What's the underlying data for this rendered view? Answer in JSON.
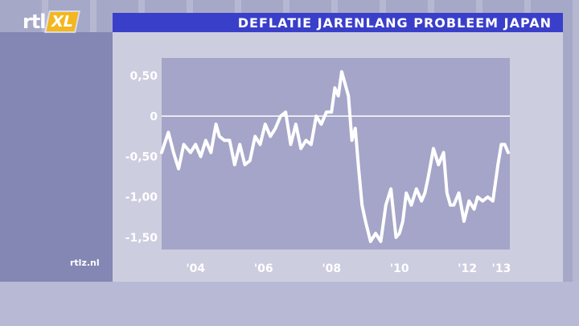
{
  "header": {
    "title": "DEFLATIE JARENLANG PROBLEEM JAPAN",
    "logo_text": "rtl",
    "logo_badge": "XL"
  },
  "footer": {
    "site": "rtlz.nl"
  },
  "colors": {
    "background": "#a6a8c8",
    "left_panel": "#8486b4",
    "chart_panel": "#cdcde0",
    "plot_area": "#a4a5c8",
    "title_bar": "#3a3fc9",
    "line": "#ffffff",
    "logo_badge": "#f3b71f"
  },
  "chart_data": {
    "type": "line",
    "title": "DEFLATIE JARENLANG PROBLEEM JAPAN",
    "xlabel": "",
    "ylabel": "",
    "xlim": [
      2003.0,
      2013.25
    ],
    "ylim": [
      -1.65,
      0.72
    ],
    "grid": "zero-line only",
    "yticks": [
      {
        "value": 0.5,
        "label": "0,50"
      },
      {
        "value": 0,
        "label": "0"
      },
      {
        "value": -0.5,
        "label": "-0,50"
      },
      {
        "value": -1.0,
        "label": "-1,00"
      },
      {
        "value": -1.5,
        "label": "-1,50"
      }
    ],
    "xticks": [
      {
        "value": 2004,
        "label": "'04"
      },
      {
        "value": 2006,
        "label": "'06"
      },
      {
        "value": 2008,
        "label": "'08"
      },
      {
        "value": 2010,
        "label": "'10"
      },
      {
        "value": 2012,
        "label": "'12"
      },
      {
        "value": 2013,
        "label": "'13"
      }
    ],
    "series": [
      {
        "color": "#ffffff",
        "x": [
          2003.0,
          2003.2,
          2003.35,
          2003.5,
          2003.65,
          2003.85,
          2004.0,
          2004.15,
          2004.3,
          2004.45,
          2004.6,
          2004.7,
          2004.85,
          2005.0,
          2005.15,
          2005.3,
          2005.45,
          2005.6,
          2005.75,
          2005.9,
          2006.05,
          2006.2,
          2006.35,
          2006.5,
          2006.65,
          2006.8,
          2006.95,
          2007.1,
          2007.25,
          2007.4,
          2007.55,
          2007.7,
          2007.85,
          2008.0,
          2008.1,
          2008.2,
          2008.3,
          2008.4,
          2008.5,
          2008.6,
          2008.7,
          2008.8,
          2008.9,
          2009.0,
          2009.15,
          2009.3,
          2009.45,
          2009.6,
          2009.75,
          2009.9,
          2010.0,
          2010.1,
          2010.2,
          2010.35,
          2010.5,
          2010.65,
          2010.75,
          2010.85,
          2011.0,
          2011.15,
          2011.3,
          2011.4,
          2011.5,
          2011.6,
          2011.75,
          2011.9,
          2012.05,
          2012.2,
          2012.3,
          2012.45,
          2012.6,
          2012.75,
          2012.9,
          2013.0,
          2013.1,
          2013.2
        ],
        "values": [
          -0.45,
          -0.2,
          -0.45,
          -0.65,
          -0.35,
          -0.45,
          -0.35,
          -0.5,
          -0.3,
          -0.45,
          -0.1,
          -0.25,
          -0.3,
          -0.3,
          -0.6,
          -0.35,
          -0.6,
          -0.55,
          -0.25,
          -0.35,
          -0.1,
          -0.25,
          -0.15,
          0.0,
          0.05,
          -0.35,
          -0.1,
          -0.4,
          -0.3,
          -0.35,
          0.0,
          -0.1,
          0.05,
          0.05,
          0.35,
          0.25,
          0.55,
          0.4,
          0.25,
          -0.3,
          -0.15,
          -0.65,
          -1.1,
          -1.3,
          -1.55,
          -1.45,
          -1.55,
          -1.1,
          -0.9,
          -1.5,
          -1.45,
          -1.3,
          -0.95,
          -1.1,
          -0.9,
          -1.05,
          -0.95,
          -0.75,
          -0.4,
          -0.6,
          -0.45,
          -0.95,
          -1.1,
          -1.1,
          -0.95,
          -1.3,
          -1.05,
          -1.15,
          -1.0,
          -1.05,
          -1.0,
          -1.05,
          -0.6,
          -0.35,
          -0.35,
          -0.45
        ]
      }
    ]
  }
}
